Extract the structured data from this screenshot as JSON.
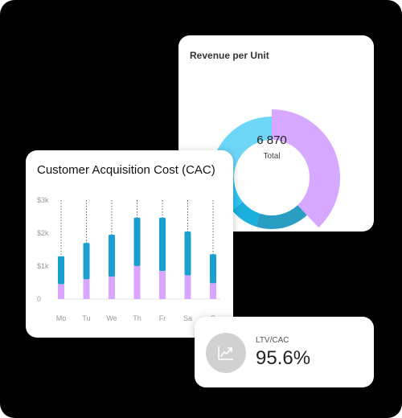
{
  "revenue": {
    "title": "Revenue per Unit",
    "total_value": "6 870",
    "total_label": "Total",
    "chart_data": {
      "type": "pie",
      "title": "Revenue per Unit",
      "slices": [
        {
          "value": 38,
          "color": "#d6a8ff"
        },
        {
          "value": 17,
          "color": "#2a9ec2"
        },
        {
          "value": 9,
          "color": "#1ab0dd"
        },
        {
          "value": 11,
          "color": "#2ec5f3"
        },
        {
          "value": 25,
          "color": "#6ed6f7"
        }
      ],
      "colors": [
        "#d6a8ff",
        "#2a9ec2",
        "#1ab0dd",
        "#2ec5f3",
        "#6ed6f7"
      ]
    }
  },
  "cac": {
    "title": "Customer Acquisition Cost (CAC)",
    "chart_data": {
      "type": "bar",
      "title": "Customer Acquisition Cost (CAC)",
      "categories": [
        "Mo",
        "Tu",
        "We",
        "Th",
        "Fr",
        "Sa",
        "Su"
      ],
      "visible_category_labels": [
        "Mo",
        "Tu",
        "We",
        "Th",
        "Fr",
        "Sa",
        "S"
      ],
      "yticks": [
        "0",
        "$1k",
        "$2k",
        "$3k"
      ],
      "ylim": [
        0,
        3000
      ],
      "stacked": true,
      "series": [
        {
          "values": [
            450,
            600,
            680,
            1000,
            850,
            720,
            480
          ],
          "color": "#d8a6ff"
        },
        {
          "values": [
            850,
            1100,
            1270,
            1470,
            1620,
            1330,
            880
          ],
          "color": "#1a9fce"
        }
      ],
      "grid": false
    }
  },
  "ltv": {
    "label": "LTV/CAC",
    "value": "95.6%",
    "icon": "trending-up-icon"
  }
}
